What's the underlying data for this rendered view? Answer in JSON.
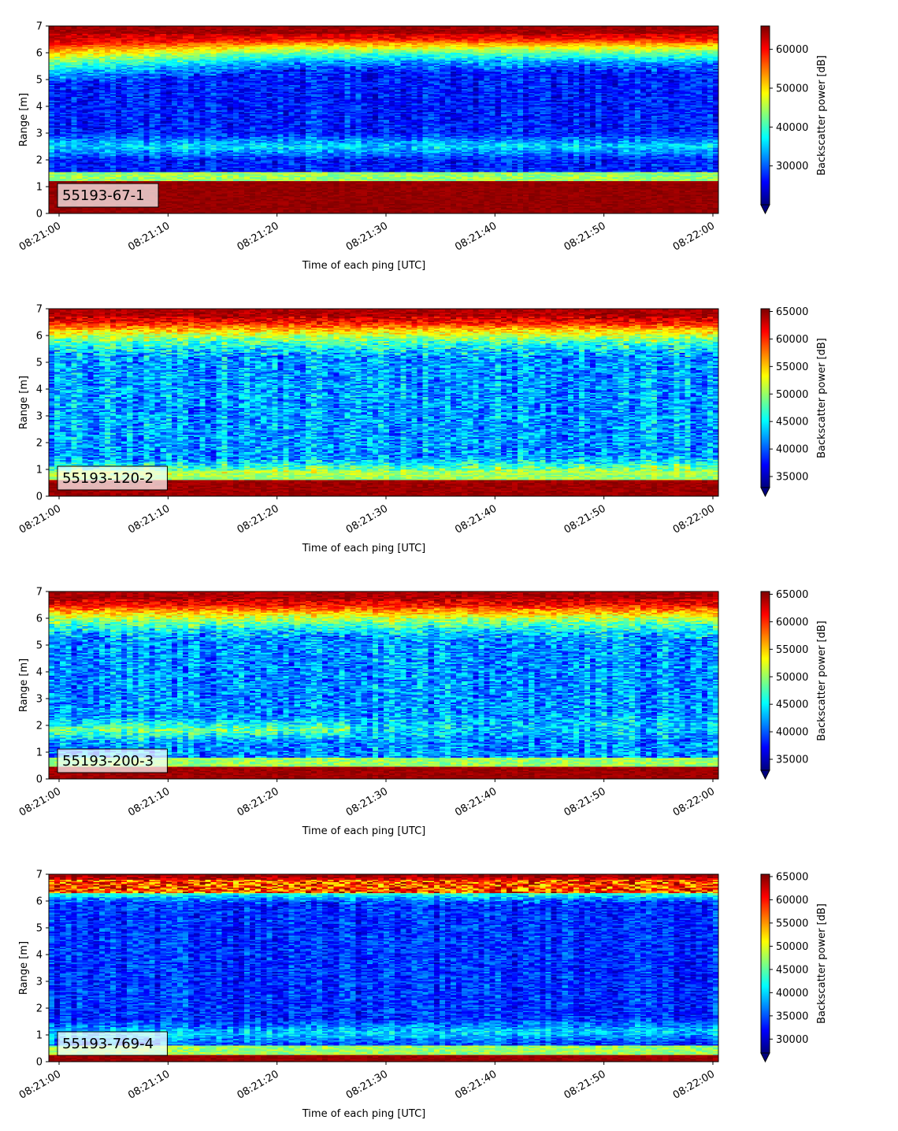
{
  "chart_data": [
    {
      "type": "heatmap",
      "panel_label": "55193-67-1",
      "xlabel": "Time of each ping [UTC]",
      "ylabel": "Range [m]",
      "colorbar_label": "Backscatter power [dB]",
      "x_ticks": [
        "08:21:00",
        "08:21:10",
        "08:21:20",
        "08:21:30",
        "08:21:40",
        "08:21:50",
        "08:22:00"
      ],
      "y_ticks": [
        0,
        1,
        2,
        3,
        4,
        5,
        6,
        7
      ],
      "ylim": [
        0,
        7
      ],
      "colorbar_ticks": [
        30000,
        40000,
        50000,
        60000
      ],
      "vmin": 20000,
      "vmax": 66000,
      "colormap": "jet",
      "colorbar_extend": "min",
      "profile": {
        "bottom_band_top_m": 1.2,
        "noise_level": 27000,
        "noise_spread": 4000,
        "top_band_start_m": 5.3,
        "mid_bump_m": 2.5,
        "mid_bump_level": 36000
      }
    },
    {
      "type": "heatmap",
      "panel_label": "55193-120-2",
      "xlabel": "Time of each ping [UTC]",
      "ylabel": "Range [m]",
      "colorbar_label": "Backscatter power [dB]",
      "x_ticks": [
        "08:21:00",
        "08:21:10",
        "08:21:20",
        "08:21:30",
        "08:21:40",
        "08:21:50",
        "08:22:00"
      ],
      "y_ticks": [
        0,
        1,
        2,
        3,
        4,
        5,
        6,
        7
      ],
      "ylim": [
        0,
        7
      ],
      "colorbar_ticks": [
        35000,
        40000,
        45000,
        50000,
        55000,
        60000,
        65000
      ],
      "vmin": 33000,
      "vmax": 65500,
      "colormap": "jet",
      "colorbar_extend": "min",
      "profile": {
        "bottom_band_top_m": 0.6,
        "noise_level": 42000,
        "noise_spread": 4000,
        "top_band_start_m": 5.2,
        "mid_bump_m": 0.85,
        "mid_bump_level": 50000
      }
    },
    {
      "type": "heatmap",
      "panel_label": "55193-200-3",
      "xlabel": "Time of each ping [UTC]",
      "ylabel": "Range [m]",
      "colorbar_label": "Backscatter power [dB]",
      "x_ticks": [
        "08:21:00",
        "08:21:10",
        "08:21:20",
        "08:21:30",
        "08:21:40",
        "08:21:50",
        "08:22:00"
      ],
      "y_ticks": [
        0,
        1,
        2,
        3,
        4,
        5,
        6,
        7
      ],
      "ylim": [
        0,
        7
      ],
      "colorbar_ticks": [
        35000,
        40000,
        45000,
        50000,
        55000,
        60000,
        65000
      ],
      "vmin": 33000,
      "vmax": 65500,
      "colormap": "jet",
      "colorbar_extend": "min",
      "profile": {
        "bottom_band_top_m": 0.45,
        "noise_level": 41500,
        "noise_spread": 4000,
        "top_band_start_m": 5.2,
        "mid_bump_m": 1.8,
        "mid_bump_level": 49000
      }
    },
    {
      "type": "heatmap",
      "panel_label": "55193-769-4",
      "xlabel": "Time of each ping [UTC]",
      "ylabel": "Range [m]",
      "colorbar_label": "Backscatter power [dB]",
      "x_ticks": [
        "08:21:00",
        "08:21:10",
        "08:21:20",
        "08:21:30",
        "08:21:40",
        "08:21:50",
        "08:22:00"
      ],
      "y_ticks": [
        0,
        1,
        2,
        3,
        4,
        5,
        6,
        7
      ],
      "ylim": [
        0,
        7
      ],
      "colorbar_ticks": [
        30000,
        35000,
        40000,
        45000,
        50000,
        55000,
        60000,
        65000
      ],
      "vmin": 27000,
      "vmax": 65500,
      "colormap": "jet",
      "colorbar_extend": "min",
      "profile": {
        "bottom_band_top_m": 0.25,
        "noise_level": 33500,
        "noise_spread": 3500,
        "top_band_start_m": 5.9,
        "mid_bump_m": 1.0,
        "mid_bump_level": 40000
      }
    }
  ]
}
